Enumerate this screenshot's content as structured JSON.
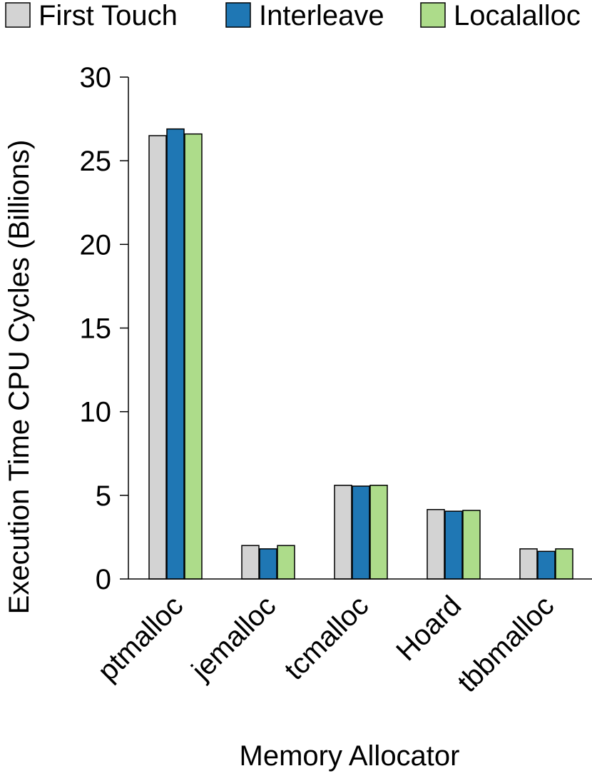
{
  "chart_data": {
    "type": "bar",
    "xlabel": "Memory Allocator",
    "ylabel": "Execution Time CPU Cycles (Billions)",
    "ylim": [
      0,
      30
    ],
    "yticks": [
      0,
      5,
      10,
      15,
      20,
      25,
      30
    ],
    "grid": false,
    "legend_position": "top",
    "categories": [
      "ptmalloc",
      "jemalloc",
      "tcmalloc",
      "Hoard",
      "tbbmalloc"
    ],
    "series": [
      {
        "name": "First Touch",
        "color": "#d3d3d3",
        "values": [
          26.5,
          2.0,
          5.6,
          4.15,
          1.8
        ]
      },
      {
        "name": "Interleave",
        "color": "#1f77b4",
        "values": [
          26.9,
          1.8,
          5.55,
          4.05,
          1.65
        ]
      },
      {
        "name": "Localalloc",
        "color": "#addc8a",
        "values": [
          26.6,
          2.0,
          5.6,
          4.1,
          1.8
        ]
      }
    ]
  }
}
